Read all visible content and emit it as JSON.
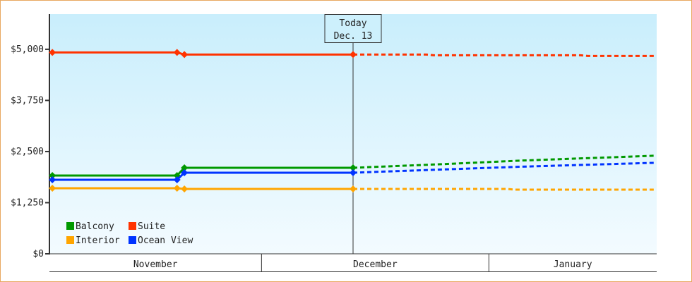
{
  "chart_data": {
    "type": "line",
    "title": "",
    "xlabel": "",
    "ylabel": "",
    "ylim": [
      0,
      5860
    ],
    "xlim": [
      "Nov 2",
      "Jan 23"
    ],
    "grid": false,
    "legend_position": "bottom-left",
    "y_ticks": [
      "$0",
      "$1,250",
      "$2,500",
      "$3,750",
      "$5,000"
    ],
    "y_tick_values": [
      0,
      1250,
      2500,
      3750,
      5000
    ],
    "x_month_labels": [
      "November",
      "December",
      "January"
    ],
    "today_marker": {
      "line1": "Today",
      "line2": "Dec. 13",
      "date": "Dec 13"
    },
    "series": [
      {
        "name": "Balcony",
        "color": "#009900",
        "actual": [
          [
            "Nov 2",
            1914
          ],
          [
            "Nov 19",
            1914
          ],
          [
            "Nov 20",
            2103
          ],
          [
            "Dec 13",
            2103
          ]
        ],
        "forecast": [
          [
            "Dec 13",
            2103
          ],
          [
            "Dec 25",
            2190
          ],
          [
            "Jan 5",
            2280
          ],
          [
            "Jan 23",
            2397
          ]
        ]
      },
      {
        "name": "Suite",
        "color": "#ff3300",
        "actual": [
          [
            "Nov 2",
            4922
          ],
          [
            "Nov 19",
            4922
          ],
          [
            "Nov 20",
            4871
          ],
          [
            "Dec 13",
            4871
          ]
        ],
        "forecast": [
          [
            "Dec 13",
            4871
          ],
          [
            "Dec 23",
            4871
          ],
          [
            "Dec 24",
            4853
          ],
          [
            "Jan 13",
            4853
          ],
          [
            "Jan 14",
            4836
          ],
          [
            "Jan 23",
            4836
          ]
        ]
      },
      {
        "name": "Interior",
        "color": "#ffa500",
        "actual": [
          [
            "Nov 2",
            1603
          ],
          [
            "Nov 19",
            1603
          ],
          [
            "Nov 20",
            1586
          ],
          [
            "Dec 13",
            1586
          ]
        ],
        "forecast": [
          [
            "Dec 13",
            1586
          ],
          [
            "Jan 3",
            1586
          ],
          [
            "Jan 4",
            1569
          ],
          [
            "Jan 23",
            1569
          ]
        ]
      },
      {
        "name": "Ocean View",
        "color": "#0033ff",
        "actual": [
          [
            "Nov 2",
            1810
          ],
          [
            "Nov 19",
            1810
          ],
          [
            "Nov 20",
            1983
          ],
          [
            "Dec 13",
            1983
          ]
        ],
        "forecast": [
          [
            "Dec 13",
            1983
          ],
          [
            "Dec 25",
            2060
          ],
          [
            "Jan 5",
            2130
          ],
          [
            "Jan 23",
            2224
          ]
        ]
      }
    ]
  }
}
